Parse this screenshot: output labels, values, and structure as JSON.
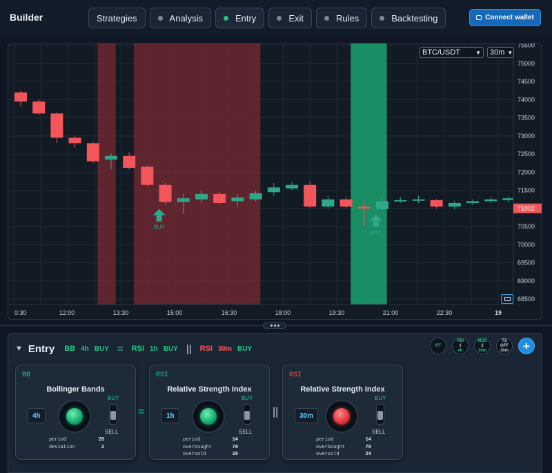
{
  "app": {
    "title": "Builder"
  },
  "nav": {
    "tabs": [
      {
        "label": "Strategies",
        "dot": false,
        "active": false
      },
      {
        "label": "Analysis",
        "dot": true,
        "active": false
      },
      {
        "label": "Entry",
        "dot": true,
        "active": true
      },
      {
        "label": "Exit",
        "dot": true,
        "active": false
      },
      {
        "label": "Rules",
        "dot": true,
        "active": false
      },
      {
        "label": "Backtesting",
        "dot": true,
        "active": false
      }
    ],
    "connect_label": "Connect wallet"
  },
  "chart": {
    "pair": "BTC/USDT",
    "interval": "30m",
    "signal_label": "BUY"
  },
  "chart_data": {
    "type": "candlestick",
    "x_ticks": [
      "0:30",
      "12:00",
      "13:30",
      "15:00",
      "16:30",
      "18:00",
      "19:30",
      "21:00",
      "22:30",
      "19"
    ],
    "y_ticks": [
      68500,
      69000,
      69500,
      70000,
      70500,
      71000,
      71500,
      72000,
      72500,
      73000,
      73500,
      74000,
      74500,
      75000,
      75500
    ],
    "ylim": [
      68350,
      75550
    ],
    "last_price": "71002",
    "grid": true,
    "colors": {
      "up": "#2fa88a",
      "down": "#f2555a",
      "sell_zone": "#7a2a33",
      "buy_zone": "#1b9a6b"
    },
    "candles": [
      {
        "o": 74200,
        "h": 74250,
        "l": 73820,
        "c": 73950
      },
      {
        "o": 73950,
        "h": 74000,
        "l": 73580,
        "c": 73620
      },
      {
        "o": 73620,
        "h": 73650,
        "l": 72800,
        "c": 72950
      },
      {
        "o": 72950,
        "h": 73000,
        "l": 72680,
        "c": 72800
      },
      {
        "o": 72800,
        "h": 72850,
        "l": 72250,
        "c": 72300
      },
      {
        "o": 72350,
        "h": 72520,
        "l": 72080,
        "c": 72450
      },
      {
        "o": 72450,
        "h": 72550,
        "l": 72070,
        "c": 72120
      },
      {
        "o": 72150,
        "h": 72180,
        "l": 71620,
        "c": 71650
      },
      {
        "o": 71650,
        "h": 71700,
        "l": 71100,
        "c": 71180
      },
      {
        "o": 71180,
        "h": 71400,
        "l": 70850,
        "c": 71280
      },
      {
        "o": 71250,
        "h": 71500,
        "l": 71150,
        "c": 71400
      },
      {
        "o": 71400,
        "h": 71450,
        "l": 71100,
        "c": 71150
      },
      {
        "o": 71200,
        "h": 71400,
        "l": 71050,
        "c": 71300
      },
      {
        "o": 71250,
        "h": 71480,
        "l": 71200,
        "c": 71420
      },
      {
        "o": 71450,
        "h": 71700,
        "l": 71350,
        "c": 71580
      },
      {
        "o": 71550,
        "h": 71730,
        "l": 71500,
        "c": 71650
      },
      {
        "o": 71650,
        "h": 71760,
        "l": 71000,
        "c": 71050
      },
      {
        "o": 71050,
        "h": 71350,
        "l": 71000,
        "c": 71250
      },
      {
        "o": 71250,
        "h": 71330,
        "l": 71000,
        "c": 71050
      },
      {
        "o": 71050,
        "h": 71180,
        "l": 70500,
        "c": 71000
      },
      {
        "o": 70980,
        "h": 71330,
        "l": 70950,
        "c": 71200
      },
      {
        "o": 71200,
        "h": 71320,
        "l": 71150,
        "c": 71230
      },
      {
        "o": 71220,
        "h": 71350,
        "l": 71150,
        "c": 71250
      },
      {
        "o": 71230,
        "h": 71250,
        "l": 71000,
        "c": 71050
      },
      {
        "o": 71050,
        "h": 71200,
        "l": 70980,
        "c": 71150
      },
      {
        "o": 71150,
        "h": 71250,
        "l": 71100,
        "c": 71200
      },
      {
        "o": 71200,
        "h": 71320,
        "l": 71150,
        "c": 71250
      },
      {
        "o": 71230,
        "h": 71330,
        "l": 71150,
        "c": 71280
      },
      {
        "o": 71250,
        "h": 71300,
        "l": 71000,
        "c": 71050
      }
    ],
    "zones": [
      {
        "type": "sell",
        "from_index": 4.6,
        "to_index": 5.6
      },
      {
        "type": "sell",
        "from_index": 6.6,
        "to_index": 13.6
      },
      {
        "type": "buy",
        "from_index": 18.6,
        "to_index": 20.6
      }
    ],
    "signals": [
      {
        "type": "buy",
        "index": 8,
        "label": "BUY"
      },
      {
        "type": "buy",
        "index": 20,
        "label": "BUY"
      }
    ]
  },
  "entry": {
    "title": "Entry",
    "formula": {
      "f1_ind": "BB",
      "f1_tf": "4h",
      "f1_sig": "BUY",
      "op1": "=",
      "f2_ind": "RSI",
      "f2_tf": "1h",
      "f2_sig": "BUY",
      "op2": "||",
      "f3_ind": "RSI",
      "f3_tf": "30m",
      "f3_sig": "BUY"
    },
    "chips": [
      {
        "top": "RT",
        "mid": "",
        "bot": ""
      },
      {
        "top": "PBI",
        "mid": "1",
        "bot": "4h"
      },
      {
        "top": "MSD",
        "mid": "2",
        "bot": "30m"
      },
      {
        "top": "TS",
        "mid": "OFF",
        "bot": "30m"
      },
      {
        "top": "+",
        "mid": "",
        "bot": ""
      }
    ],
    "cards": [
      {
        "tag": "BB",
        "name": "Bollinger Bands",
        "timeframe": "4h",
        "state": "green",
        "buy": "BUY",
        "sell": "SELL",
        "params": [
          {
            "k": "period",
            "v": "20"
          },
          {
            "k": "deviation",
            "v": "2"
          }
        ]
      },
      {
        "tag": "RSI",
        "name": "Relative Strength Index",
        "timeframe": "1h",
        "state": "green",
        "buy": "BUY",
        "sell": "SELL",
        "params": [
          {
            "k": "period",
            "v": "14"
          },
          {
            "k": "overbought",
            "v": "70"
          },
          {
            "k": "oversold",
            "v": "29"
          }
        ]
      },
      {
        "tag": "RSI",
        "name": "Relative Strength Index",
        "timeframe": "30m",
        "state": "red",
        "buy": "BUY",
        "sell": "SELL",
        "params": [
          {
            "k": "period",
            "v": "14"
          },
          {
            "k": "overbought",
            "v": "70"
          },
          {
            "k": "oversold",
            "v": "24"
          }
        ]
      }
    ],
    "between": [
      "=",
      "||"
    ]
  }
}
